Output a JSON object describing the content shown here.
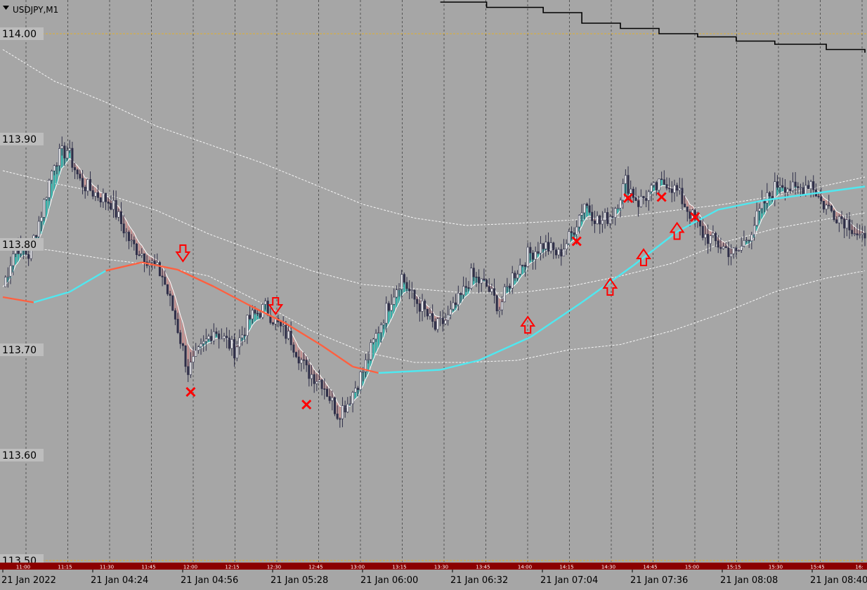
{
  "symbol": "USDJPY,M1",
  "colors": {
    "background": "#a6a6a6",
    "grid": "#555555",
    "candle": "#2e2e48",
    "bull_fill": "#ffffff",
    "bull_cloud": "#20b2aa",
    "bear_cloud": "#c98a8a",
    "trend_up": "#4fe8f0",
    "trend_down": "#ff6040",
    "signal": "#ff0000",
    "session_bar": "#8b0000",
    "level_line": "#e0b030",
    "envelope": "#ffffff",
    "staircase": "#000000"
  },
  "price_labels": [
    "114.00",
    "113.90",
    "113.80",
    "113.70",
    "113.60",
    "113.50"
  ],
  "session_labels": [
    "11:00",
    "11:15",
    "11:30",
    "11:45",
    "12:00",
    "12:15",
    "12:30",
    "12:45",
    "13:00",
    "13:15",
    "13:30",
    "13:45",
    "14:00",
    "14:15",
    "14:30",
    "14:45",
    "15:00",
    "15:15",
    "15:30",
    "15:45",
    "16:"
  ],
  "date_labels": [
    "21 Jan 2022",
    "21 Jan 04:24",
    "21 Jan 04:56",
    "21 Jan 05:28",
    "21 Jan 06:00",
    "21 Jan 06:32",
    "21 Jan 07:04",
    "21 Jan 07:36",
    "21 Jan 08:08",
    "21 Jan 08:40"
  ],
  "chart_data": {
    "type": "candlestick",
    "symbol": "USDJPY",
    "timeframe": "M1",
    "ylim": [
      113.495,
      114.03
    ],
    "y_ticks": [
      114.0,
      113.9,
      113.8,
      113.7,
      113.6,
      113.5
    ],
    "grid": true,
    "close_path": [
      [
        0,
        113.76
      ],
      [
        5,
        113.8
      ],
      [
        10,
        113.79
      ],
      [
        15,
        113.83
      ],
      [
        20,
        113.88
      ],
      [
        25,
        113.89
      ],
      [
        30,
        113.86
      ],
      [
        35,
        113.85
      ],
      [
        42,
        113.84
      ],
      [
        50,
        113.8
      ],
      [
        55,
        113.79
      ],
      [
        62,
        113.77
      ],
      [
        67,
        113.73
      ],
      [
        72,
        113.68
      ],
      [
        77,
        113.7
      ],
      [
        82,
        113.72
      ],
      [
        90,
        113.7
      ],
      [
        96,
        113.73
      ],
      [
        102,
        113.74
      ],
      [
        108,
        113.72
      ],
      [
        112,
        113.71
      ],
      [
        118,
        113.68
      ],
      [
        124,
        113.67
      ],
      [
        130,
        113.64
      ],
      [
        134,
        113.65
      ],
      [
        140,
        113.68
      ],
      [
        146,
        113.72
      ],
      [
        151,
        113.75
      ],
      [
        155,
        113.77
      ],
      [
        159,
        113.75
      ],
      [
        163,
        113.74
      ],
      [
        168,
        113.72
      ],
      [
        173,
        113.73
      ],
      [
        178,
        113.75
      ],
      [
        182,
        113.77
      ],
      [
        188,
        113.76
      ],
      [
        193,
        113.74
      ],
      [
        198,
        113.77
      ],
      [
        204,
        113.79
      ],
      [
        210,
        113.8
      ],
      [
        216,
        113.79
      ],
      [
        221,
        113.81
      ],
      [
        226,
        113.84
      ],
      [
        232,
        113.82
      ],
      [
        237,
        113.83
      ],
      [
        242,
        113.86
      ],
      [
        247,
        113.84
      ],
      [
        252,
        113.85
      ],
      [
        258,
        113.86
      ],
      [
        262,
        113.85
      ],
      [
        267,
        113.83
      ],
      [
        272,
        113.81
      ],
      [
        278,
        113.8
      ],
      [
        285,
        113.79
      ],
      [
        290,
        113.81
      ],
      [
        296,
        113.84
      ],
      [
        302,
        113.86
      ],
      [
        308,
        113.85
      ],
      [
        314,
        113.86
      ],
      [
        318,
        113.84
      ],
      [
        323,
        113.83
      ],
      [
        329,
        113.82
      ],
      [
        335,
        113.8
      ]
    ],
    "series": [
      {
        "name": "",
        "type": "trend_line",
        "points": [
          [
            0,
            113.75
          ],
          [
            12,
            113.745
          ],
          [
            26,
            113.755
          ],
          [
            40,
            113.775
          ],
          [
            54,
            113.783
          ],
          [
            68,
            113.776
          ],
          [
            82,
            113.76
          ],
          [
            96,
            113.742
          ],
          [
            110,
            113.725
          ],
          [
            124,
            113.704
          ],
          [
            136,
            113.684
          ],
          [
            146,
            113.678
          ],
          [
            170,
            113.681
          ],
          [
            185,
            113.69
          ],
          [
            205,
            113.712
          ],
          [
            225,
            113.745
          ],
          [
            245,
            113.78
          ],
          [
            262,
            113.812
          ],
          [
            278,
            113.833
          ],
          [
            296,
            113.842
          ],
          [
            314,
            113.848
          ],
          [
            335,
            113.855
          ]
        ]
      },
      {
        "name": "",
        "type": "envelope_upper",
        "points": [
          [
            0,
            113.985
          ],
          [
            20,
            113.955
          ],
          [
            40,
            113.935
          ],
          [
            60,
            113.912
          ],
          [
            80,
            113.895
          ],
          [
            100,
            113.878
          ],
          [
            120,
            113.858
          ],
          [
            140,
            113.838
          ],
          [
            160,
            113.825
          ],
          [
            180,
            113.818
          ],
          [
            200,
            113.82
          ],
          [
            220,
            113.823
          ],
          [
            240,
            113.826
          ],
          [
            260,
            113.832
          ],
          [
            280,
            113.838
          ],
          [
            300,
            113.846
          ],
          [
            320,
            113.856
          ],
          [
            335,
            113.864
          ]
        ]
      },
      {
        "name": "",
        "type": "envelope_mid",
        "points": [
          [
            0,
            113.87
          ],
          [
            20,
            113.858
          ],
          [
            40,
            113.848
          ],
          [
            60,
            113.832
          ],
          [
            80,
            113.81
          ],
          [
            100,
            113.792
          ],
          [
            120,
            113.775
          ],
          [
            140,
            113.762
          ],
          [
            160,
            113.758
          ],
          [
            180,
            113.754
          ],
          [
            200,
            113.754
          ],
          [
            220,
            113.76
          ],
          [
            240,
            113.77
          ],
          [
            260,
            113.782
          ],
          [
            280,
            113.802
          ],
          [
            300,
            113.815
          ],
          [
            320,
            113.824
          ],
          [
            335,
            113.83
          ]
        ]
      },
      {
        "name": "",
        "type": "envelope_lower",
        "points": [
          [
            0,
            113.8
          ],
          [
            20,
            113.794
          ],
          [
            40,
            113.786
          ],
          [
            60,
            113.78
          ],
          [
            80,
            113.77
          ],
          [
            100,
            113.745
          ],
          [
            120,
            113.718
          ],
          [
            140,
            113.698
          ],
          [
            160,
            113.688
          ],
          [
            180,
            113.688
          ],
          [
            200,
            113.69
          ],
          [
            220,
            113.7
          ],
          [
            240,
            113.705
          ],
          [
            260,
            113.718
          ],
          [
            280,
            113.735
          ],
          [
            300,
            113.755
          ],
          [
            320,
            113.768
          ],
          [
            335,
            113.775
          ]
        ]
      }
    ],
    "staircase_line": [
      [
        170,
        114.03
      ],
      [
        180,
        114.03
      ],
      [
        188,
        114.025
      ],
      [
        210,
        114.02
      ],
      [
        225,
        114.01
      ],
      [
        240,
        114.005
      ],
      [
        255,
        114.0
      ],
      [
        270,
        113.997
      ],
      [
        285,
        113.993
      ],
      [
        300,
        113.99
      ],
      [
        320,
        113.985
      ],
      [
        335,
        113.982
      ]
    ],
    "level_lines": [
      114.0,
      113.5
    ],
    "markers": {
      "down_arrows": [
        [
          70,
          113.79
        ],
        [
          106,
          113.74
        ]
      ],
      "up_arrows": [
        [
          204,
          113.724
        ],
        [
          236,
          113.76
        ],
        [
          249,
          113.788
        ],
        [
          262,
          113.813
        ]
      ],
      "crosses": [
        [
          73,
          113.66
        ],
        [
          118,
          113.648
        ],
        [
          223,
          113.803
        ],
        [
          243,
          113.844
        ],
        [
          256,
          113.845
        ],
        [
          269,
          113.826
        ]
      ]
    }
  }
}
